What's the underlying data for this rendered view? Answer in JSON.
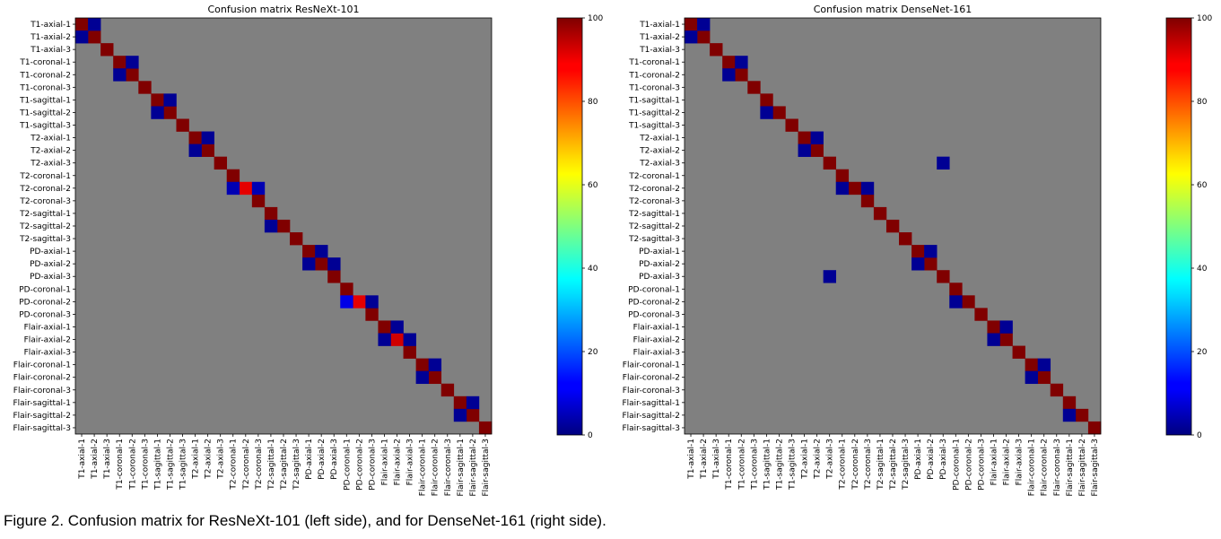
{
  "caption": "Figure 2. Confusion matrix for ResNeXt-101 (left side), and for DenseNet-161 (right side).",
  "colors": {
    "background_cell": "#808080",
    "colormap": "jet"
  },
  "chart_data": [
    {
      "type": "heatmap",
      "title": "Confusion matrix ResNeXt-101",
      "colorbar": {
        "min": 0,
        "max": 100,
        "ticks": [
          0,
          20,
          40,
          60,
          80,
          100
        ]
      },
      "labels": [
        "T1-axial-1",
        "T1-axial-2",
        "T1-axial-3",
        "T1-coronal-1",
        "T1-coronal-2",
        "T1-coronal-3",
        "T1-sagittal-1",
        "T1-sagittal-2",
        "T1-sagittal-3",
        "T2-axial-1",
        "T2-axial-2",
        "T2-axial-3",
        "T2-coronal-1",
        "T2-coronal-2",
        "T2-coronal-3",
        "T2-sagittal-1",
        "T2-sagittal-2",
        "T2-sagittal-3",
        "PD-axial-1",
        "PD-axial-2",
        "PD-axial-3",
        "PD-coronal-1",
        "PD-coronal-2",
        "PD-coronal-3",
        "Flair-axial-1",
        "Flair-axial-2",
        "Flair-axial-3",
        "Flair-coronal-1",
        "Flair-coronal-2",
        "Flair-coronal-3",
        "Flair-sagittal-1",
        "Flair-sagittal-2",
        "Flair-sagittal-3"
      ],
      "diagonal": [
        100,
        100,
        100,
        100,
        100,
        100,
        100,
        100,
        100,
        100,
        100,
        100,
        100,
        90,
        100,
        100,
        100,
        100,
        100,
        100,
        100,
        100,
        90,
        100,
        100,
        92,
        100,
        100,
        100,
        100,
        100,
        100,
        100
      ],
      "off_diagonal": [
        {
          "row": 0,
          "col": 1,
          "value": 2
        },
        {
          "row": 1,
          "col": 0,
          "value": 2
        },
        {
          "row": 3,
          "col": 4,
          "value": 2
        },
        {
          "row": 4,
          "col": 3,
          "value": 2
        },
        {
          "row": 6,
          "col": 7,
          "value": 2
        },
        {
          "row": 7,
          "col": 6,
          "value": 2
        },
        {
          "row": 9,
          "col": 10,
          "value": 2
        },
        {
          "row": 10,
          "col": 9,
          "value": 2
        },
        {
          "row": 13,
          "col": 12,
          "value": 5
        },
        {
          "row": 13,
          "col": 14,
          "value": 5
        },
        {
          "row": 16,
          "col": 15,
          "value": 2
        },
        {
          "row": 18,
          "col": 19,
          "value": 2
        },
        {
          "row": 19,
          "col": 18,
          "value": 2
        },
        {
          "row": 19,
          "col": 20,
          "value": 2
        },
        {
          "row": 22,
          "col": 21,
          "value": 10
        },
        {
          "row": 22,
          "col": 23,
          "value": 2
        },
        {
          "row": 24,
          "col": 25,
          "value": 2
        },
        {
          "row": 25,
          "col": 24,
          "value": 2
        },
        {
          "row": 25,
          "col": 26,
          "value": 2
        },
        {
          "row": 27,
          "col": 28,
          "value": 2
        },
        {
          "row": 28,
          "col": 27,
          "value": 2
        },
        {
          "row": 30,
          "col": 31,
          "value": 2
        },
        {
          "row": 31,
          "col": 30,
          "value": 2
        }
      ]
    },
    {
      "type": "heatmap",
      "title": "Confusion matrix DenseNet-161",
      "colorbar": {
        "min": 0,
        "max": 100,
        "ticks": [
          0,
          20,
          40,
          60,
          80,
          100
        ]
      },
      "labels": [
        "T1-axial-1",
        "T1-axial-2",
        "T1-axial-3",
        "T1-coronal-1",
        "T1-coronal-2",
        "T1-coronal-3",
        "T1-sagittal-1",
        "T1-sagittal-2",
        "T1-sagittal-3",
        "T2-axial-1",
        "T2-axial-2",
        "T2-axial-3",
        "T2-coronal-1",
        "T2-coronal-2",
        "T2-coronal-3",
        "T2-sagittal-1",
        "T2-sagittal-2",
        "T2-sagittal-3",
        "PD-axial-1",
        "PD-axial-2",
        "PD-axial-3",
        "PD-coronal-1",
        "PD-coronal-2",
        "PD-coronal-3",
        "Flair-axial-1",
        "Flair-axial-2",
        "Flair-axial-3",
        "Flair-coronal-1",
        "Flair-coronal-2",
        "Flair-coronal-3",
        "Flair-sagittal-1",
        "Flair-sagittal-2",
        "Flair-sagittal-3"
      ],
      "diagonal": [
        100,
        100,
        100,
        100,
        100,
        100,
        100,
        100,
        100,
        100,
        100,
        100,
        100,
        100,
        100,
        100,
        100,
        100,
        100,
        100,
        100,
        100,
        100,
        100,
        100,
        100,
        100,
        100,
        100,
        100,
        100,
        100,
        100
      ],
      "off_diagonal": [
        {
          "row": 0,
          "col": 1,
          "value": 2
        },
        {
          "row": 1,
          "col": 0,
          "value": 2
        },
        {
          "row": 3,
          "col": 4,
          "value": 2
        },
        {
          "row": 4,
          "col": 3,
          "value": 2
        },
        {
          "row": 7,
          "col": 6,
          "value": 2
        },
        {
          "row": 9,
          "col": 10,
          "value": 2
        },
        {
          "row": 10,
          "col": 9,
          "value": 2
        },
        {
          "row": 11,
          "col": 20,
          "value": 2
        },
        {
          "row": 13,
          "col": 12,
          "value": 2
        },
        {
          "row": 13,
          "col": 14,
          "value": 2
        },
        {
          "row": 18,
          "col": 19,
          "value": 2
        },
        {
          "row": 19,
          "col": 18,
          "value": 2
        },
        {
          "row": 20,
          "col": 11,
          "value": 2
        },
        {
          "row": 22,
          "col": 21,
          "value": 2
        },
        {
          "row": 24,
          "col": 25,
          "value": 2
        },
        {
          "row": 25,
          "col": 24,
          "value": 2
        },
        {
          "row": 27,
          "col": 28,
          "value": 2
        },
        {
          "row": 28,
          "col": 27,
          "value": 2
        },
        {
          "row": 31,
          "col": 30,
          "value": 2
        }
      ]
    }
  ]
}
